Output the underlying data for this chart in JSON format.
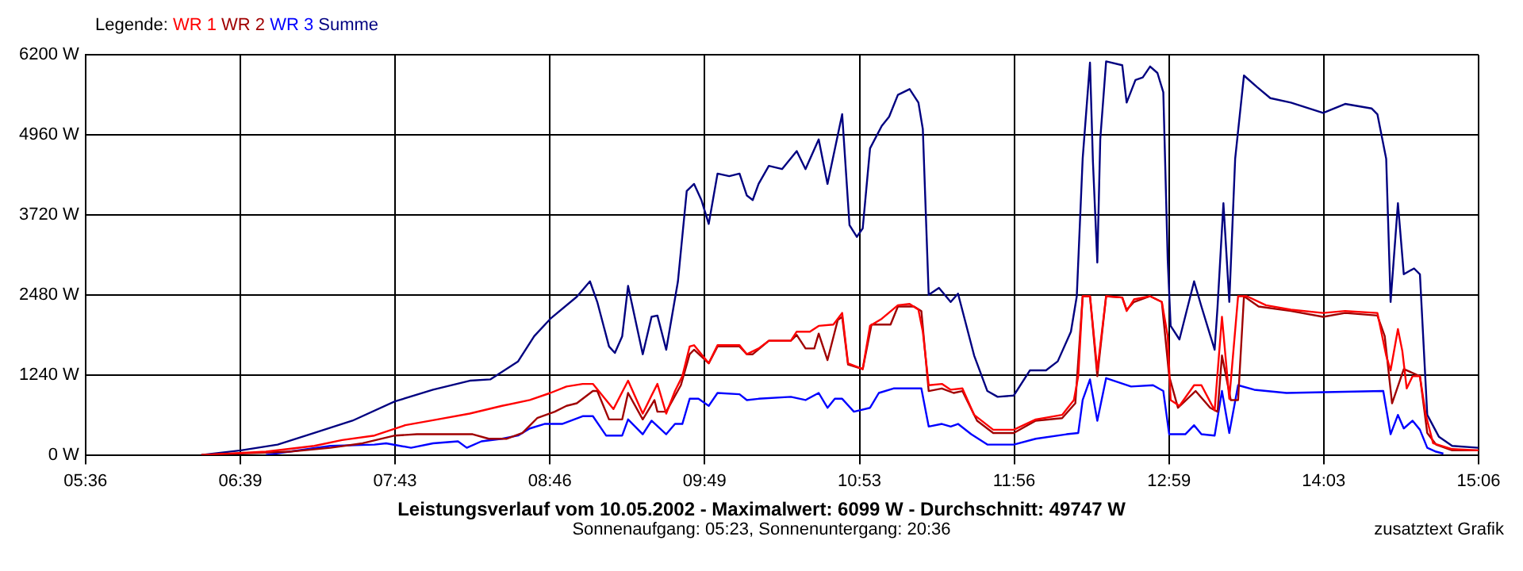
{
  "chart_data": {
    "type": "line",
    "title": "Leistungsverlauf vom 10.05.2002 - Maximalwert: 6099 W - Durchschnitt: 49747 W",
    "subtitle": "Sonnenaufgang: 05:23, Sonnenuntergang: 20:36",
    "annotations": [
      "zusatztext Grafik"
    ],
    "legend_title": "Legende:",
    "legend": "top left",
    "grid": true,
    "marker": "none",
    "xlim": [
      5.6,
      15.1
    ],
    "xticks": [
      {
        "value": 5.6,
        "label": "05:36"
      },
      {
        "value": 6.656,
        "label": "06:39"
      },
      {
        "value": 7.711,
        "label": "07:43"
      },
      {
        "value": 8.767,
        "label": "08:46"
      },
      {
        "value": 9.822,
        "label": "09:49"
      },
      {
        "value": 10.878,
        "label": "10:53"
      },
      {
        "value": 11.933,
        "label": "11:56"
      },
      {
        "value": 12.989,
        "label": "12:59"
      },
      {
        "value": 14.044,
        "label": "14:03"
      },
      {
        "value": 15.1,
        "label": "15:06"
      }
    ],
    "ylim": [
      0,
      6200
    ],
    "yticks": [
      {
        "value": 0,
        "label": "0 W"
      },
      {
        "value": 1240,
        "label": "1240 W"
      },
      {
        "value": 2480,
        "label": "2480 W"
      },
      {
        "value": 3720,
        "label": "3720 W"
      },
      {
        "value": 4960,
        "label": "4960 W"
      },
      {
        "value": 6200,
        "label": "6200 W"
      }
    ],
    "series": [
      {
        "name": "WR 1",
        "color": "#ff0000",
        "x": [
          6.39,
          6.83,
          7.16,
          7.35,
          7.57,
          7.78,
          8.0,
          8.22,
          8.44,
          8.63,
          8.77,
          8.88,
          8.99,
          9.06,
          9.2,
          9.3,
          9.4,
          9.46,
          9.5,
          9.56,
          9.62,
          9.67,
          9.72,
          9.75,
          9.85,
          9.91,
          10.06,
          10.11,
          10.19,
          10.26,
          10.41,
          10.45,
          10.54,
          10.6,
          10.7,
          10.76,
          10.8,
          10.9,
          10.95,
          11.03,
          11.14,
          11.22,
          11.28,
          11.31,
          11.35,
          11.44,
          11.5,
          11.58,
          11.66,
          11.79,
          11.93,
          12.08,
          12.26,
          12.34,
          12.37,
          12.4,
          12.45,
          12.5,
          12.56,
          12.67,
          12.7,
          12.75,
          12.86,
          12.94,
          12.98,
          13.0,
          13.06,
          13.16,
          13.21,
          13.3,
          13.35,
          13.4,
          13.46,
          13.52,
          13.65,
          13.82,
          14.04,
          14.19,
          14.41,
          14.47,
          14.5,
          14.55,
          14.58,
          14.61,
          14.65,
          14.7,
          14.74,
          14.79,
          14.92,
          15.1
        ],
        "values": [
          0,
          50,
          140,
          230,
          300,
          460,
          550,
          640,
          760,
          850,
          960,
          1060,
          1100,
          1100,
          710,
          1150,
          640,
          920,
          1100,
          640,
          990,
          1220,
          1680,
          1700,
          1420,
          1700,
          1700,
          1560,
          1650,
          1770,
          1770,
          1910,
          1910,
          2000,
          2020,
          2200,
          1420,
          1330,
          2000,
          2110,
          2320,
          2340,
          2250,
          1910,
          1080,
          1100,
          1010,
          1030,
          620,
          390,
          390,
          550,
          620,
          850,
          1220,
          2460,
          2460,
          1310,
          2460,
          2440,
          2230,
          2410,
          2460,
          2370,
          1840,
          850,
          760,
          1080,
          1080,
          690,
          2140,
          870,
          2460,
          2460,
          2320,
          2250,
          2200,
          2230,
          2200,
          1540,
          1310,
          1950,
          1610,
          1030,
          1220,
          1220,
          620,
          180,
          90,
          70
        ]
      },
      {
        "name": "WR 2",
        "color": "#a00000",
        "x": [
          6.39,
          6.99,
          7.27,
          7.49,
          7.71,
          7.86,
          7.97,
          8.24,
          8.35,
          8.47,
          8.58,
          8.68,
          8.8,
          8.88,
          8.95,
          9.06,
          9.09,
          9.17,
          9.26,
          9.3,
          9.4,
          9.48,
          9.5,
          9.56,
          9.66,
          9.72,
          9.75,
          9.85,
          9.91,
          10.06,
          10.11,
          10.15,
          10.26,
          10.41,
          10.45,
          10.51,
          10.57,
          10.6,
          10.66,
          10.73,
          10.76,
          10.8,
          10.9,
          10.96,
          11.09,
          11.14,
          11.25,
          11.3,
          11.35,
          11.44,
          11.52,
          11.58,
          11.68,
          11.79,
          11.93,
          12.08,
          12.26,
          12.35,
          12.4,
          12.45,
          12.5,
          12.56,
          12.67,
          12.7,
          12.75,
          12.86,
          12.94,
          12.99,
          13.05,
          13.17,
          13.27,
          13.32,
          13.35,
          13.41,
          13.46,
          13.5,
          13.6,
          13.82,
          14.04,
          14.19,
          14.41,
          14.46,
          14.51,
          14.59,
          14.7,
          14.75,
          14.81,
          14.92,
          15.1
        ],
        "values": [
          0,
          50,
          110,
          180,
          300,
          320,
          320,
          320,
          250,
          250,
          340,
          570,
          670,
          760,
          800,
          990,
          990,
          550,
          550,
          960,
          550,
          850,
          670,
          670,
          1080,
          1560,
          1630,
          1420,
          1680,
          1680,
          1560,
          1560,
          1770,
          1770,
          1860,
          1650,
          1650,
          1880,
          1470,
          2090,
          2140,
          1400,
          1330,
          2020,
          2020,
          2300,
          2300,
          2230,
          990,
          1030,
          960,
          990,
          530,
          340,
          340,
          530,
          570,
          800,
          2460,
          2460,
          1220,
          2460,
          2440,
          2250,
          2370,
          2460,
          2370,
          1220,
          730,
          990,
          730,
          670,
          1540,
          850,
          850,
          2460,
          2300,
          2230,
          2140,
          2200,
          2160,
          1840,
          800,
          1330,
          1220,
          340,
          160,
          70,
          70
        ]
      },
      {
        "name": "WR 3",
        "color": "#0000ff",
        "x": [
          6.83,
          6.99,
          7.27,
          7.57,
          7.65,
          7.82,
          7.97,
          8.14,
          8.2,
          8.3,
          8.44,
          8.55,
          8.63,
          8.73,
          8.85,
          8.99,
          9.06,
          9.15,
          9.26,
          9.3,
          9.4,
          9.46,
          9.56,
          9.62,
          9.67,
          9.72,
          9.78,
          9.85,
          9.91,
          10.06,
          10.11,
          10.19,
          10.41,
          10.51,
          10.6,
          10.66,
          10.71,
          10.76,
          10.84,
          10.95,
          11.01,
          11.11,
          11.3,
          11.35,
          11.44,
          11.5,
          11.55,
          11.64,
          11.75,
          11.93,
          12.08,
          12.29,
          12.37,
          12.4,
          12.45,
          12.5,
          12.56,
          12.73,
          12.88,
          12.95,
          12.99,
          13.1,
          13.16,
          13.21,
          13.3,
          13.35,
          13.4,
          13.46,
          13.57,
          13.79,
          14.45,
          14.5,
          14.55,
          14.59,
          14.65,
          14.7,
          14.75,
          14.81,
          14.86
        ],
        "values": [
          0,
          50,
          140,
          160,
          180,
          110,
          180,
          210,
          110,
          210,
          250,
          300,
          410,
          480,
          480,
          600,
          600,
          300,
          300,
          550,
          320,
          530,
          320,
          480,
          480,
          870,
          870,
          760,
          960,
          940,
          850,
          870,
          900,
          850,
          960,
          730,
          870,
          870,
          670,
          730,
          960,
          1030,
          1030,
          440,
          480,
          440,
          480,
          320,
          160,
          160,
          250,
          320,
          340,
          850,
          1170,
          530,
          1190,
          1060,
          1080,
          990,
          320,
          320,
          460,
          320,
          300,
          990,
          340,
          1080,
          1010,
          960,
          990,
          320,
          620,
          410,
          530,
          390,
          110,
          50,
          20
        ]
      },
      {
        "name": "Summe",
        "color": "#000080",
        "x": [
          6.39,
          6.66,
          6.91,
          7.16,
          7.42,
          7.71,
          7.97,
          8.22,
          8.36,
          8.55,
          8.66,
          8.77,
          8.95,
          9.04,
          9.09,
          9.17,
          9.21,
          9.26,
          9.3,
          9.4,
          9.46,
          9.5,
          9.56,
          9.64,
          9.7,
          9.75,
          9.8,
          9.85,
          9.91,
          9.99,
          10.06,
          10.11,
          10.15,
          10.19,
          10.26,
          10.35,
          10.45,
          10.51,
          10.6,
          10.66,
          10.76,
          10.81,
          10.86,
          10.9,
          10.95,
          11.03,
          11.08,
          11.14,
          11.22,
          11.28,
          11.31,
          11.35,
          11.42,
          11.5,
          11.55,
          11.66,
          11.75,
          11.82,
          11.93,
          12.04,
          12.15,
          12.23,
          12.32,
          12.36,
          12.4,
          12.45,
          12.47,
          12.5,
          12.52,
          12.56,
          12.67,
          12.7,
          12.76,
          12.81,
          12.86,
          12.91,
          12.95,
          12.98,
          13.0,
          13.06,
          13.16,
          13.21,
          13.3,
          13.32,
          13.36,
          13.4,
          13.44,
          13.5,
          13.59,
          13.68,
          13.82,
          14.04,
          14.19,
          14.37,
          14.41,
          14.47,
          14.5,
          14.55,
          14.59,
          14.66,
          14.7,
          14.75,
          14.83,
          14.92,
          15.1
        ],
        "values": [
          0,
          70,
          160,
          340,
          530,
          830,
          1010,
          1150,
          1170,
          1450,
          1840,
          2110,
          2450,
          2690,
          2370,
          1680,
          1580,
          1840,
          2620,
          1560,
          2140,
          2160,
          1630,
          2690,
          4090,
          4200,
          3950,
          3580,
          4360,
          4320,
          4360,
          4020,
          3950,
          4200,
          4480,
          4430,
          4710,
          4430,
          4890,
          4200,
          5280,
          3560,
          3380,
          3510,
          4750,
          5100,
          5240,
          5580,
          5670,
          5460,
          5050,
          2480,
          2590,
          2370,
          2500,
          1540,
          990,
          900,
          920,
          1310,
          1310,
          1450,
          1910,
          2460,
          4590,
          6080,
          4550,
          2980,
          4890,
          6100,
          6040,
          5460,
          5810,
          5850,
          6020,
          5920,
          5620,
          3030,
          2000,
          1790,
          2690,
          2300,
          1630,
          2300,
          3900,
          2370,
          4590,
          5880,
          5700,
          5530,
          5460,
          5300,
          5440,
          5370,
          5280,
          4590,
          2370,
          3900,
          2800,
          2890,
          2800,
          620,
          280,
          140,
          110
        ]
      }
    ]
  }
}
